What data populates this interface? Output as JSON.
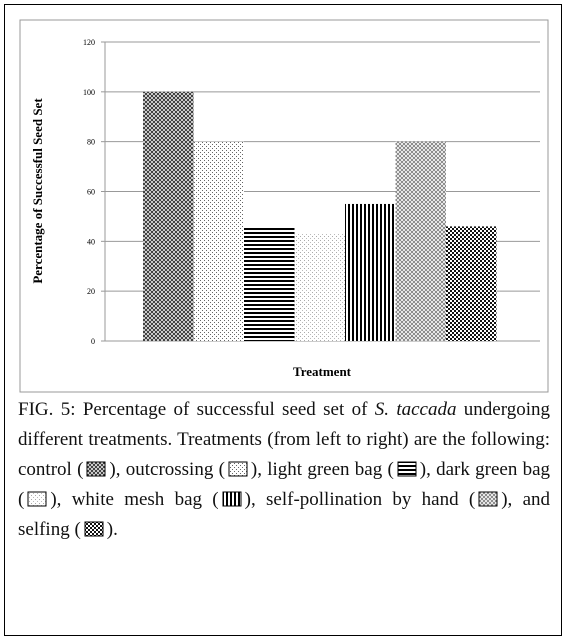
{
  "chart_data": {
    "type": "bar",
    "ylabel": "Percentage of Successful Seed Set",
    "xlabel": "Treatment",
    "categories": [
      null,
      null,
      null,
      null,
      null,
      null,
      null
    ],
    "values": [
      100,
      80,
      46,
      43,
      55,
      80,
      46
    ],
    "ylim": [
      0,
      120
    ],
    "yticks": [
      0,
      20,
      40,
      60,
      80,
      100,
      120
    ],
    "grid": true
  },
  "caption": {
    "label": "FIG. 5:",
    "lead": "Percentage of successful seed set of",
    "species": "S. taccada",
    "text": "undergoing different treatments. Treatments (from left to right) are the following:",
    "items": [
      {
        "text": "control (",
        "end": "),"
      },
      {
        "text": "outcrossing (",
        "end": "),"
      },
      {
        "text": "light green bag (",
        "end": "),"
      },
      {
        "text": "dark green bag (",
        "end": "),"
      },
      {
        "text": "white mesh bag (",
        "end": "),"
      },
      {
        "text": "self-pollination by hand (",
        "end": "),"
      },
      {
        "text": "and selfing (",
        "end": ")."
      }
    ]
  }
}
